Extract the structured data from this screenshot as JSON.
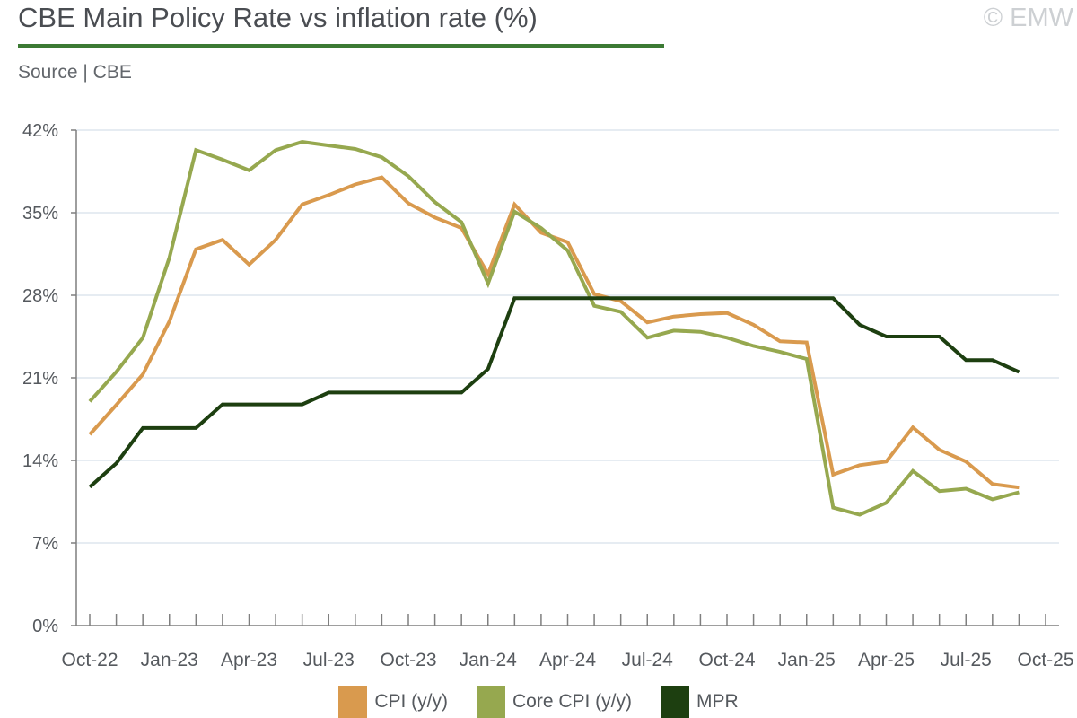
{
  "header": {
    "title": "CBE Main Policy Rate vs inflation rate (%)",
    "source": "Source | CBE",
    "copyright": "© EMW"
  },
  "colors": {
    "cpi": "#d99a4e",
    "core_cpi": "#96a84f",
    "mpr": "#1d3f10",
    "grid": "#dde6ee",
    "axis": "#7f7f7f",
    "title_rule": "#3c7a34"
  },
  "chart_data": {
    "type": "line",
    "title": "CBE Main Policy Rate vs inflation rate (%)",
    "xlabel": "",
    "ylabel": "",
    "ylim": [
      0,
      42
    ],
    "yticks": [
      0,
      7,
      14,
      21,
      28,
      35,
      42
    ],
    "ytick_labels": [
      "0%",
      "7%",
      "14%",
      "21%",
      "28%",
      "35%",
      "42%"
    ],
    "grid": true,
    "legend_position": "bottom-center",
    "x": [
      "Oct-22",
      "Nov-22",
      "Dec-22",
      "Jan-23",
      "Feb-23",
      "Mar-23",
      "Apr-23",
      "May-23",
      "Jun-23",
      "Jul-23",
      "Aug-23",
      "Sep-23",
      "Oct-23",
      "Nov-23",
      "Dec-23",
      "Jan-24",
      "Feb-24",
      "Mar-24",
      "Apr-24",
      "May-24",
      "Jun-24",
      "Jul-24",
      "Aug-24",
      "Sep-24",
      "Oct-24",
      "Nov-24",
      "Dec-24",
      "Jan-25",
      "Feb-25",
      "Mar-25",
      "Apr-25",
      "May-25",
      "Jun-25",
      "Jul-25",
      "Aug-25",
      "Sep-25",
      "Oct-25"
    ],
    "xtick_labels": [
      "Oct-22",
      "Jan-23",
      "Apr-23",
      "Jul-23",
      "Oct-23",
      "Jan-24",
      "Apr-24",
      "Jul-24",
      "Oct-24",
      "Jan-25",
      "Apr-25",
      "Jul-25",
      "Oct-25"
    ],
    "series": [
      {
        "name": "CPI (y/y)",
        "key": "cpi",
        "values": [
          16.2,
          18.7,
          21.3,
          25.8,
          31.9,
          32.7,
          30.6,
          32.7,
          35.7,
          36.5,
          37.4,
          38.0,
          35.8,
          34.6,
          33.7,
          29.8,
          35.7,
          33.3,
          32.5,
          28.1,
          27.5,
          25.7,
          26.2,
          26.4,
          26.5,
          25.5,
          24.1,
          24.0,
          12.8,
          13.6,
          13.9,
          16.8,
          14.9,
          13.9,
          12.0,
          11.7,
          null
        ]
      },
      {
        "name": "Core CPI (y/y)",
        "key": "core_cpi",
        "values": [
          19.0,
          21.5,
          24.4,
          31.2,
          40.3,
          39.5,
          38.6,
          40.3,
          41.0,
          40.7,
          40.4,
          39.7,
          38.1,
          35.9,
          34.2,
          29.0,
          35.1,
          33.7,
          31.8,
          27.1,
          26.6,
          24.4,
          25.0,
          24.9,
          24.4,
          23.7,
          23.2,
          22.6,
          10.0,
          9.4,
          10.4,
          13.1,
          11.4,
          11.6,
          10.7,
          11.3,
          null
        ]
      },
      {
        "name": "MPR",
        "key": "mpr",
        "values": [
          11.75,
          13.75,
          16.75,
          16.75,
          16.75,
          18.75,
          18.75,
          18.75,
          18.75,
          19.75,
          19.75,
          19.75,
          19.75,
          19.75,
          19.75,
          21.75,
          27.75,
          27.75,
          27.75,
          27.75,
          27.75,
          27.75,
          27.75,
          27.75,
          27.75,
          27.75,
          27.75,
          27.75,
          27.75,
          25.5,
          24.5,
          24.5,
          24.5,
          22.5,
          22.5,
          21.5,
          null
        ]
      }
    ]
  }
}
